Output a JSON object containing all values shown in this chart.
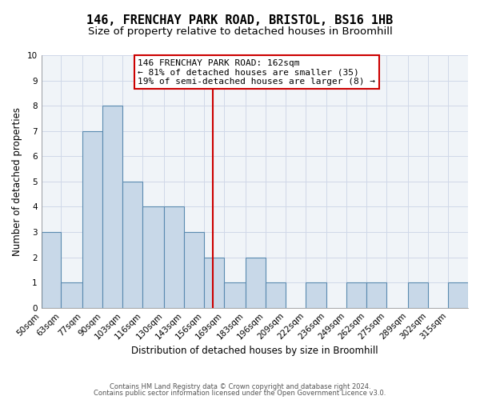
{
  "title": "146, FRENCHAY PARK ROAD, BRISTOL, BS16 1HB",
  "subtitle": "Size of property relative to detached houses in Broomhill",
  "xlabel": "Distribution of detached houses by size in Broomhill",
  "ylabel": "Number of detached properties",
  "bin_labels": [
    "50sqm",
    "63sqm",
    "77sqm",
    "90sqm",
    "103sqm",
    "116sqm",
    "130sqm",
    "143sqm",
    "156sqm",
    "169sqm",
    "183sqm",
    "196sqm",
    "209sqm",
    "222sqm",
    "236sqm",
    "249sqm",
    "262sqm",
    "275sqm",
    "289sqm",
    "302sqm",
    "315sqm"
  ],
  "bin_edges": [
    50,
    63,
    77,
    90,
    103,
    116,
    130,
    143,
    156,
    169,
    183,
    196,
    209,
    222,
    236,
    249,
    262,
    275,
    289,
    302,
    315
  ],
  "counts": [
    3,
    1,
    7,
    8,
    5,
    4,
    4,
    3,
    2,
    1,
    2,
    1,
    0,
    1,
    0,
    1,
    1,
    0,
    1,
    0,
    1
  ],
  "bar_color": "#c8d8e8",
  "bar_edge_color": "#5a8ab0",
  "vline_x": 162,
  "vline_color": "#cc0000",
  "annotation_text": "146 FRENCHAY PARK ROAD: 162sqm\n← 81% of detached houses are smaller (35)\n19% of semi-detached houses are larger (8) →",
  "annotation_box_color": "#cc0000",
  "ylim": [
    0,
    10
  ],
  "yticks": [
    0,
    1,
    2,
    3,
    4,
    5,
    6,
    7,
    8,
    9,
    10
  ],
  "grid_color": "#d0d8e8",
  "background_color": "#f0f4f8",
  "footer_line1": "Contains HM Land Registry data © Crown copyright and database right 2024.",
  "footer_line2": "Contains public sector information licensed under the Open Government Licence v3.0.",
  "title_fontsize": 11,
  "subtitle_fontsize": 9.5,
  "label_fontsize": 8.5,
  "tick_fontsize": 7.5,
  "annotation_fontsize": 8
}
